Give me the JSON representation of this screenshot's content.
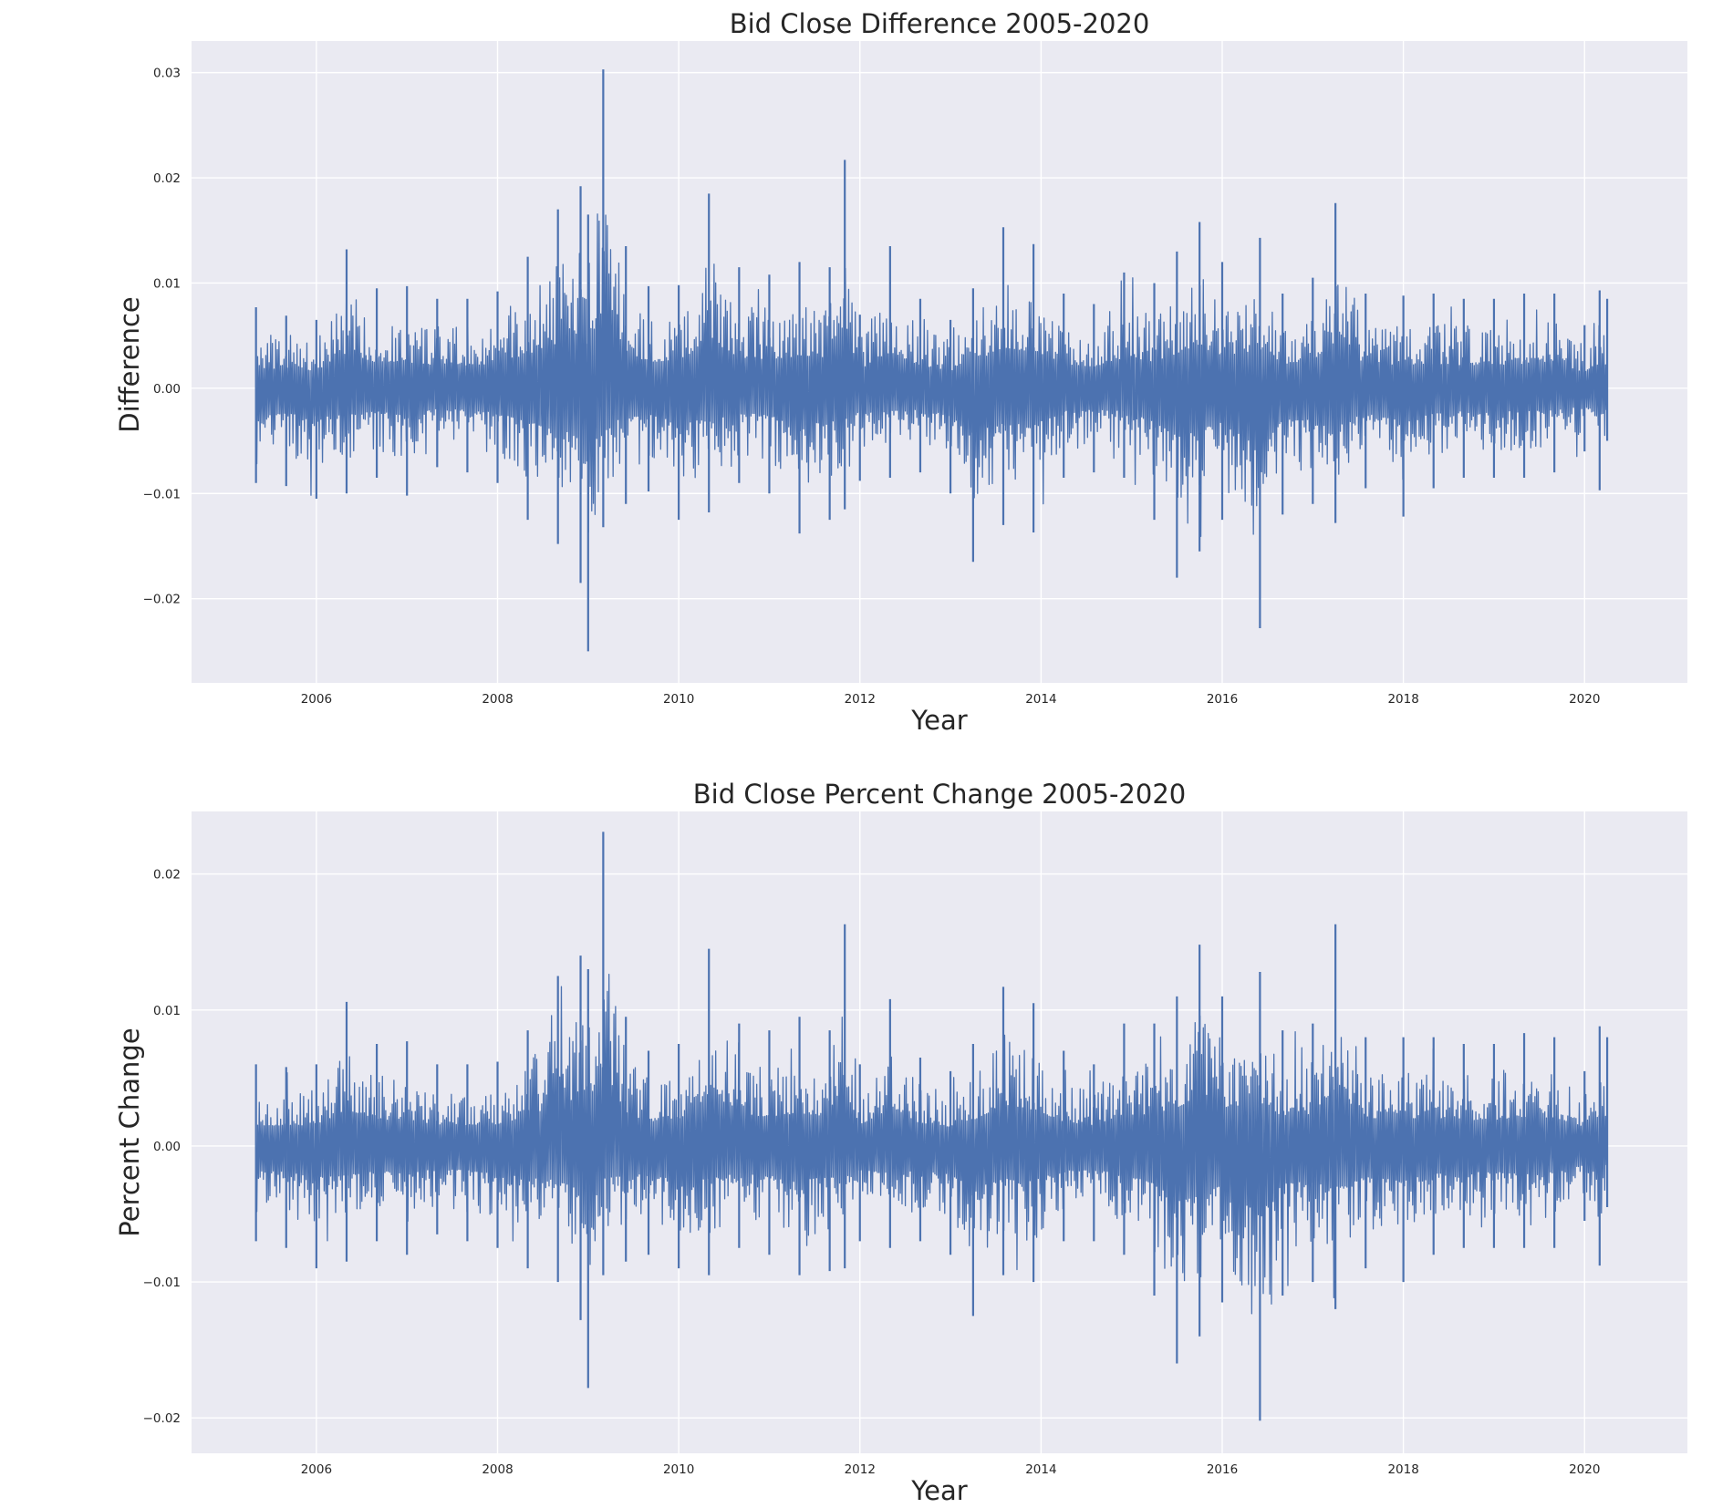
{
  "chart_data": [
    {
      "type": "line",
      "title": "Bid Close Difference 2005-2020",
      "xlabel": "Year",
      "ylabel": "Difference",
      "xlim": [
        "2004-08-15",
        "2021-02-20"
      ],
      "ylim": [
        -0.028,
        0.033
      ],
      "x_ticks": [
        "2006",
        "2008",
        "2010",
        "2012",
        "2014",
        "2016",
        "2018",
        "2020"
      ],
      "y_ticks": [
        "0.03",
        "0.02",
        "0.01",
        "0.00",
        "−0.01",
        "−0.02"
      ],
      "y_tick_values": [
        0.03,
        0.02,
        0.01,
        0.0,
        -0.01,
        -0.02
      ],
      "grid": true,
      "series": [
        {
          "color": "#4c72b0",
          "x": [
            "2005-05",
            "2005-09",
            "2006-01",
            "2006-05",
            "2006-09",
            "2007-01",
            "2007-05",
            "2007-09",
            "2008-01",
            "2008-05",
            "2008-09",
            "2008-12",
            "2009-01",
            "2009-03",
            "2009-06",
            "2009-09",
            "2010-01",
            "2010-05",
            "2010-09",
            "2011-01",
            "2011-05",
            "2011-09",
            "2011-11",
            "2012-01",
            "2012-05",
            "2012-09",
            "2013-01",
            "2013-04",
            "2013-08",
            "2013-12",
            "2014-04",
            "2014-08",
            "2014-12",
            "2015-04",
            "2015-07",
            "2015-10",
            "2016-01",
            "2016-06",
            "2016-09",
            "2017-01",
            "2017-04",
            "2017-08",
            "2018-01",
            "2018-05",
            "2018-09",
            "2019-01",
            "2019-05",
            "2019-09",
            "2020-01",
            "2020-03",
            "2020-04"
          ],
          "high": [
            0.0077,
            0.0069,
            0.0065,
            0.0132,
            0.0095,
            0.0097,
            0.0085,
            0.0085,
            0.0092,
            0.0125,
            0.017,
            0.0192,
            0.0165,
            0.0303,
            0.0135,
            0.0097,
            0.0098,
            0.0185,
            0.0115,
            0.0108,
            0.012,
            0.0115,
            0.0217,
            0.007,
            0.0135,
            0.0085,
            0.0065,
            0.0095,
            0.0153,
            0.0137,
            0.009,
            0.008,
            0.011,
            0.01,
            0.013,
            0.0158,
            0.012,
            0.0143,
            0.009,
            0.0105,
            0.0176,
            0.009,
            0.0088,
            0.009,
            0.0085,
            0.0085,
            0.009,
            0.009,
            0.006,
            0.0093,
            0.0085
          ],
          "low": [
            -0.009,
            -0.0093,
            -0.0105,
            -0.01,
            -0.0085,
            -0.0102,
            -0.0075,
            -0.008,
            -0.009,
            -0.0125,
            -0.0148,
            -0.0185,
            -0.025,
            -0.0132,
            -0.011,
            -0.0098,
            -0.0125,
            -0.0118,
            -0.009,
            -0.01,
            -0.0138,
            -0.0125,
            -0.0115,
            -0.0088,
            -0.0085,
            -0.008,
            -0.01,
            -0.0165,
            -0.013,
            -0.0137,
            -0.0085,
            -0.008,
            -0.0085,
            -0.0125,
            -0.018,
            -0.0155,
            -0.0125,
            -0.0228,
            -0.012,
            -0.011,
            -0.0128,
            -0.0095,
            -0.0122,
            -0.0095,
            -0.0085,
            -0.0085,
            -0.0085,
            -0.008,
            -0.006,
            -0.0097,
            -0.005
          ]
        }
      ]
    },
    {
      "type": "line",
      "title": "Bid Close Percent Change 2005-2020",
      "xlabel": "Year",
      "ylabel": "Percent Change",
      "xlim": [
        "2004-08-15",
        "2021-02-20"
      ],
      "ylim": [
        -0.0226,
        0.0246
      ],
      "x_ticks": [
        "2006",
        "2008",
        "2010",
        "2012",
        "2014",
        "2016",
        "2018",
        "2020"
      ],
      "y_ticks": [
        "0.02",
        "0.01",
        "0.00",
        "−0.01",
        "−0.02"
      ],
      "y_tick_values": [
        0.02,
        0.01,
        0.0,
        -0.01,
        -0.02
      ],
      "grid": true,
      "series": [
        {
          "color": "#4c72b0",
          "x": [
            "2005-05",
            "2005-09",
            "2006-01",
            "2006-05",
            "2006-09",
            "2007-01",
            "2007-05",
            "2007-09",
            "2008-01",
            "2008-05",
            "2008-09",
            "2008-12",
            "2009-01",
            "2009-03",
            "2009-06",
            "2009-09",
            "2010-01",
            "2010-05",
            "2010-09",
            "2011-01",
            "2011-05",
            "2011-09",
            "2011-11",
            "2012-01",
            "2012-05",
            "2012-09",
            "2013-01",
            "2013-04",
            "2013-08",
            "2013-12",
            "2014-04",
            "2014-08",
            "2014-12",
            "2015-04",
            "2015-07",
            "2015-10",
            "2016-01",
            "2016-06",
            "2016-09",
            "2017-01",
            "2017-04",
            "2017-08",
            "2018-01",
            "2018-05",
            "2018-09",
            "2019-01",
            "2019-05",
            "2019-09",
            "2020-01",
            "2020-03",
            "2020-04"
          ],
          "high": [
            0.006,
            0.0058,
            0.006,
            0.0106,
            0.0075,
            0.0077,
            0.006,
            0.006,
            0.0062,
            0.0085,
            0.0125,
            0.014,
            0.013,
            0.0231,
            0.0095,
            0.007,
            0.0075,
            0.0145,
            0.009,
            0.0085,
            0.0095,
            0.0085,
            0.0163,
            0.006,
            0.0108,
            0.0065,
            0.0055,
            0.0075,
            0.0117,
            0.0105,
            0.007,
            0.006,
            0.009,
            0.009,
            0.011,
            0.0148,
            0.011,
            0.0128,
            0.0085,
            0.009,
            0.0163,
            0.008,
            0.008,
            0.008,
            0.0075,
            0.0075,
            0.0083,
            0.008,
            0.0055,
            0.0088,
            0.008
          ],
          "low": [
            -0.007,
            -0.0075,
            -0.009,
            -0.0085,
            -0.007,
            -0.008,
            -0.0065,
            -0.007,
            -0.0075,
            -0.009,
            -0.01,
            -0.0128,
            -0.0178,
            -0.0095,
            -0.0085,
            -0.008,
            -0.009,
            -0.0095,
            -0.0075,
            -0.008,
            -0.0095,
            -0.0092,
            -0.009,
            -0.007,
            -0.0075,
            -0.007,
            -0.008,
            -0.0125,
            -0.0095,
            -0.01,
            -0.007,
            -0.007,
            -0.008,
            -0.011,
            -0.016,
            -0.014,
            -0.0115,
            -0.0202,
            -0.011,
            -0.01,
            -0.012,
            -0.009,
            -0.01,
            -0.008,
            -0.0075,
            -0.0075,
            -0.0075,
            -0.0075,
            -0.0055,
            -0.0088,
            -0.0045
          ]
        }
      ]
    }
  ]
}
